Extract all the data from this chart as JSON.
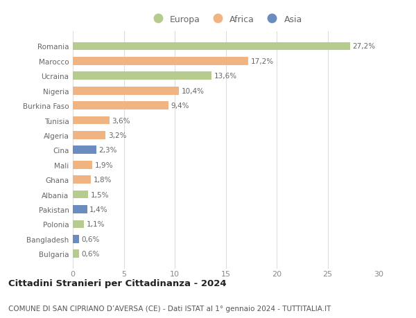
{
  "countries": [
    "Romania",
    "Marocco",
    "Ucraina",
    "Nigeria",
    "Burkina Faso",
    "Tunisia",
    "Algeria",
    "Cina",
    "Mali",
    "Ghana",
    "Albania",
    "Pakistan",
    "Polonia",
    "Bangladesh",
    "Bulgaria"
  ],
  "values": [
    27.2,
    17.2,
    13.6,
    10.4,
    9.4,
    3.6,
    3.2,
    2.3,
    1.9,
    1.8,
    1.5,
    1.4,
    1.1,
    0.6,
    0.6
  ],
  "labels": [
    "27,2%",
    "17,2%",
    "13,6%",
    "10,4%",
    "9,4%",
    "3,6%",
    "3,2%",
    "2,3%",
    "1,9%",
    "1,8%",
    "1,5%",
    "1,4%",
    "1,1%",
    "0,6%",
    "0,6%"
  ],
  "continents": [
    "Europa",
    "Africa",
    "Europa",
    "Africa",
    "Africa",
    "Africa",
    "Africa",
    "Asia",
    "Africa",
    "Africa",
    "Europa",
    "Asia",
    "Europa",
    "Asia",
    "Europa"
  ],
  "colors": {
    "Europa": "#b5cc8e",
    "Africa": "#f0b482",
    "Asia": "#6b8cbe"
  },
  "xlim": [
    0,
    30
  ],
  "xticks": [
    0,
    5,
    10,
    15,
    20,
    25,
    30
  ],
  "title_main": "Cittadini Stranieri per Cittadinanza - 2024",
  "title_sub": "COMUNE DI SAN CIPRIANO D’AVERSA (CE) - Dati ISTAT al 1° gennaio 2024 - TUTTITALIA.IT",
  "background_color": "#ffffff",
  "grid_color": "#dddddd",
  "bar_height": 0.55,
  "label_fontsize": 7.5,
  "tick_fontsize": 7.5,
  "xtick_fontsize": 8,
  "title_fontsize": 9.5,
  "subtitle_fontsize": 7.5,
  "legend_fontsize": 9
}
